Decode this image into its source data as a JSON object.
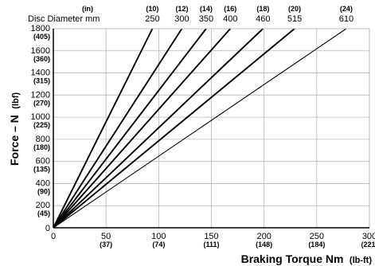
{
  "chart_data": {
    "type": "line",
    "xlabel": "Braking Torque Nm",
    "xlabel_unit": "(lb-ft)",
    "ylabel": "Force – N",
    "ylabel_unit": "(lbf)",
    "xlim": [
      0,
      300
    ],
    "ylim": [
      0,
      1800
    ],
    "x_ticks": [
      {
        "value": 0,
        "label": "0",
        "sub": ""
      },
      {
        "value": 50,
        "label": "50",
        "sub": "(37)"
      },
      {
        "value": 100,
        "label": "100",
        "sub": "(74)"
      },
      {
        "value": 150,
        "label": "150",
        "sub": "(111)"
      },
      {
        "value": 200,
        "label": "200",
        "sub": "(148)"
      },
      {
        "value": 250,
        "label": "250",
        "sub": "(184)"
      },
      {
        "value": 300,
        "label": "300",
        "sub": "(221)"
      }
    ],
    "y_ticks": [
      {
        "value": 0,
        "label": "0",
        "sub": ""
      },
      {
        "value": 200,
        "label": "200",
        "sub": "(45)"
      },
      {
        "value": 400,
        "label": "400",
        "sub": "(90)"
      },
      {
        "value": 600,
        "label": "600",
        "sub": "(135)"
      },
      {
        "value": 800,
        "label": "800",
        "sub": "(180)"
      },
      {
        "value": 1000,
        "label": "1000",
        "sub": "(225)"
      },
      {
        "value": 1200,
        "label": "1200",
        "sub": "(270)"
      },
      {
        "value": 1400,
        "label": "1400",
        "sub": "(315)"
      },
      {
        "value": 1600,
        "label": "1600",
        "sub": "(360)"
      },
      {
        "value": 1800,
        "label": "1800",
        "sub": "(405)"
      }
    ],
    "disc_header": {
      "unit_in": "(in)",
      "label_mm": "Disc Diameter mm"
    },
    "series": [
      {
        "disc_in": "(10)",
        "disc_mm": "250",
        "x": [
          0,
          94
        ],
        "y": [
          0,
          1800
        ]
      },
      {
        "disc_in": "(12)",
        "disc_mm": "300",
        "x": [
          0,
          122
        ],
        "y": [
          0,
          1800
        ]
      },
      {
        "disc_in": "(14)",
        "disc_mm": "350",
        "x": [
          0,
          145
        ],
        "y": [
          0,
          1800
        ]
      },
      {
        "disc_in": "(16)",
        "disc_mm": "400",
        "x": [
          0,
          168
        ],
        "y": [
          0,
          1800
        ]
      },
      {
        "disc_in": "(18)",
        "disc_mm": "460",
        "x": [
          0,
          199
        ],
        "y": [
          0,
          1800
        ]
      },
      {
        "disc_in": "(20)",
        "disc_mm": "515",
        "x": [
          0,
          229
        ],
        "y": [
          0,
          1800
        ]
      },
      {
        "disc_in": "(24)",
        "disc_mm": "610",
        "x": [
          0,
          278
        ],
        "y": [
          0,
          1800
        ]
      }
    ],
    "grid": true
  }
}
